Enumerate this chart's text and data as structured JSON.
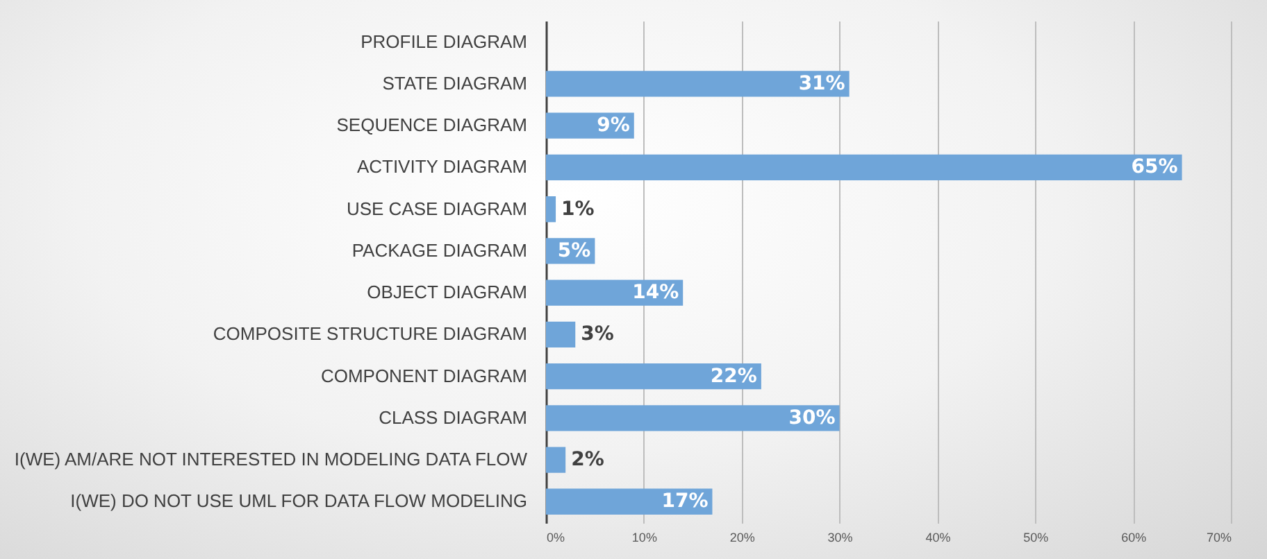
{
  "chart_data": {
    "type": "bar",
    "orientation": "horizontal",
    "categories": [
      "PROFILE DIAGRAM",
      "STATE DIAGRAM",
      "SEQUENCE DIAGRAM",
      "ACTIVITY DIAGRAM",
      "USE CASE DIAGRAM",
      "PACKAGE DIAGRAM",
      "OBJECT DIAGRAM ",
      "COMPOSITE STRUCTURE DIAGRAM",
      "COMPONENT DIAGRAM",
      "CLASS DIAGRAM",
      "I(WE) AM/ARE NOT INTERESTED IN MODELING DATA FLOW",
      "I(WE) DO NOT USE UML FOR DATA FLOW MODELING"
    ],
    "values": [
      0,
      31,
      9,
      65,
      1,
      5,
      14,
      3,
      22,
      30,
      2,
      17
    ],
    "value_labels": [
      null,
      "31%",
      "9%",
      "65%",
      "1%",
      "5%",
      "14%",
      "3%",
      "22%",
      "30%",
      "2%",
      "17%"
    ],
    "color": "#6fa5d9",
    "xlim": [
      0,
      70
    ],
    "xticks": [
      {
        "value": 0,
        "label": "0%"
      },
      {
        "value": 10,
        "label": "10%"
      },
      {
        "value": 20,
        "label": "20%"
      },
      {
        "value": 30,
        "label": "30%"
      },
      {
        "value": 40,
        "label": "40%"
      },
      {
        "value": 50,
        "label": "50%"
      },
      {
        "value": 60,
        "label": "60%"
      },
      {
        "value": 70,
        "label": "70%"
      }
    ],
    "grid": "x",
    "legend": false
  }
}
